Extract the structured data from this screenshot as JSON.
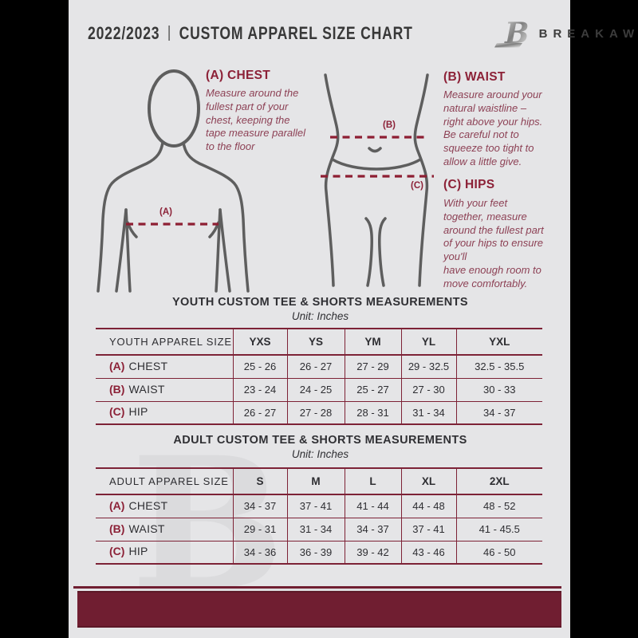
{
  "colors": {
    "page_background": "#e5e5e7",
    "frame": "#000000",
    "accent_maroon": "#8c2137",
    "table_border": "#7d2236",
    "footer_bar": "#701e31",
    "text_dark": "#2e2e32",
    "figure_outline": "#5e5e5e",
    "watermark": "#d9d9db"
  },
  "header": {
    "season": "2022/2023",
    "separator": "|",
    "title": "CUSTOM APPAREL SIZE CHART",
    "brand": "BREAKAWAY"
  },
  "guides": {
    "chest": {
      "heading": "(A) CHEST",
      "body": "Measure around the\nfullest part of your\nchest, keeping the\ntape measure parallel\nto the floor"
    },
    "waist": {
      "heading": "(B) WAIST",
      "body": "Measure around your\nnatural waistline –\nright above your hips.\nBe careful not to\nsqueeze too tight to\nallow a little give."
    },
    "hips": {
      "heading": "(C) HIPS",
      "body": "With your feet\ntogether, measure\naround the fullest part\nof your hips to ensure\nyou'll\nhave enough room to\nmove comfortably."
    }
  },
  "diagram_labels": {
    "chest": "(A)",
    "waist": "(B)",
    "hips": "(C)"
  },
  "youth_table": {
    "title": "YOUTH CUSTOM TEE & SHORTS MEASUREMENTS",
    "unit": "Unit: Inches",
    "size_header": "YOUTH APPAREL SIZE",
    "sizes": [
      "YXS",
      "YS",
      "YM",
      "YL",
      "YXL"
    ],
    "rows": [
      {
        "prefix": "(A)",
        "label": "CHEST",
        "values": [
          "25 - 26",
          "26 - 27",
          "27 - 29",
          "29 - 32.5",
          "32.5 - 35.5"
        ]
      },
      {
        "prefix": "(B)",
        "label": "WAIST",
        "values": [
          "23 - 24",
          "24 - 25",
          "25 - 27",
          "27 - 30",
          "30 - 33"
        ]
      },
      {
        "prefix": "(C)",
        "label": "HIP",
        "values": [
          "26 - 27",
          "27 - 28",
          "28 - 31",
          "31 - 34",
          "34 - 37"
        ]
      }
    ]
  },
  "adult_table": {
    "title": "ADULT CUSTOM TEE & SHORTS MEASUREMENTS",
    "unit": "Unit: Inches",
    "size_header": "ADULT APPAREL SIZE",
    "sizes": [
      "S",
      "M",
      "L",
      "XL",
      "2XL"
    ],
    "rows": [
      {
        "prefix": "(A)",
        "label": "CHEST",
        "values": [
          "34 - 37",
          "37 - 41",
          "41 - 44",
          "44 - 48",
          "48 - 52"
        ]
      },
      {
        "prefix": "(B)",
        "label": "WAIST",
        "values": [
          "29 - 31",
          "31 - 34",
          "34 - 37",
          "37 - 41",
          "41 - 45.5"
        ]
      },
      {
        "prefix": "(C)",
        "label": "HIP",
        "values": [
          "34 - 36",
          "36 - 39",
          "39 - 42",
          "43 - 46",
          "46 - 50"
        ]
      }
    ]
  }
}
